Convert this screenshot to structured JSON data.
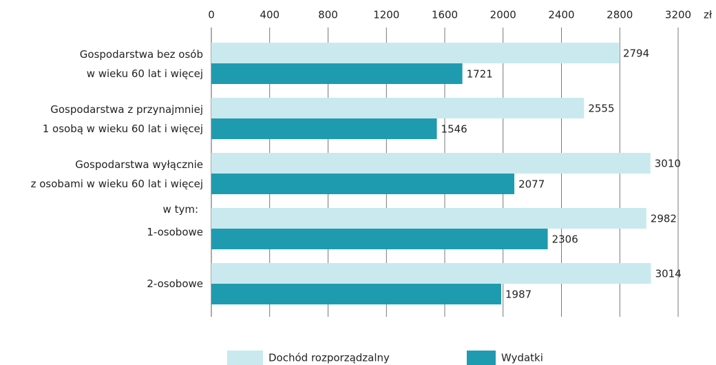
{
  "chart_data": {
    "type": "bar",
    "orientation": "horizontal",
    "categories": [
      "Gospodarstwa bez osób\nw wieku 60 lat i więcej",
      "Gospodarstwa z przynajmniej\n1 osobą w wieku 60 lat i więcej",
      "Gospodarstwa wyłącznie\nz osobami w wieku 60 lat i więcej",
      "1-osobowe",
      "2-osobowe"
    ],
    "annotations": [
      "w tym:"
    ],
    "series": [
      {
        "name": "Dochód rozporządzalny",
        "color": "#c9e9ef",
        "values": [
          2794,
          2555,
          3010,
          2982,
          3014
        ]
      },
      {
        "name": "Wydatki",
        "color": "#1f9bb0",
        "values": [
          1721,
          1546,
          2077,
          2306,
          1987
        ]
      }
    ],
    "xlabel": "zł",
    "xlim": [
      0,
      3200
    ],
    "xticks": [
      0,
      400,
      800,
      1200,
      1600,
      2000,
      2400,
      2800,
      3200
    ],
    "grid": true,
    "legend": "bottom"
  }
}
